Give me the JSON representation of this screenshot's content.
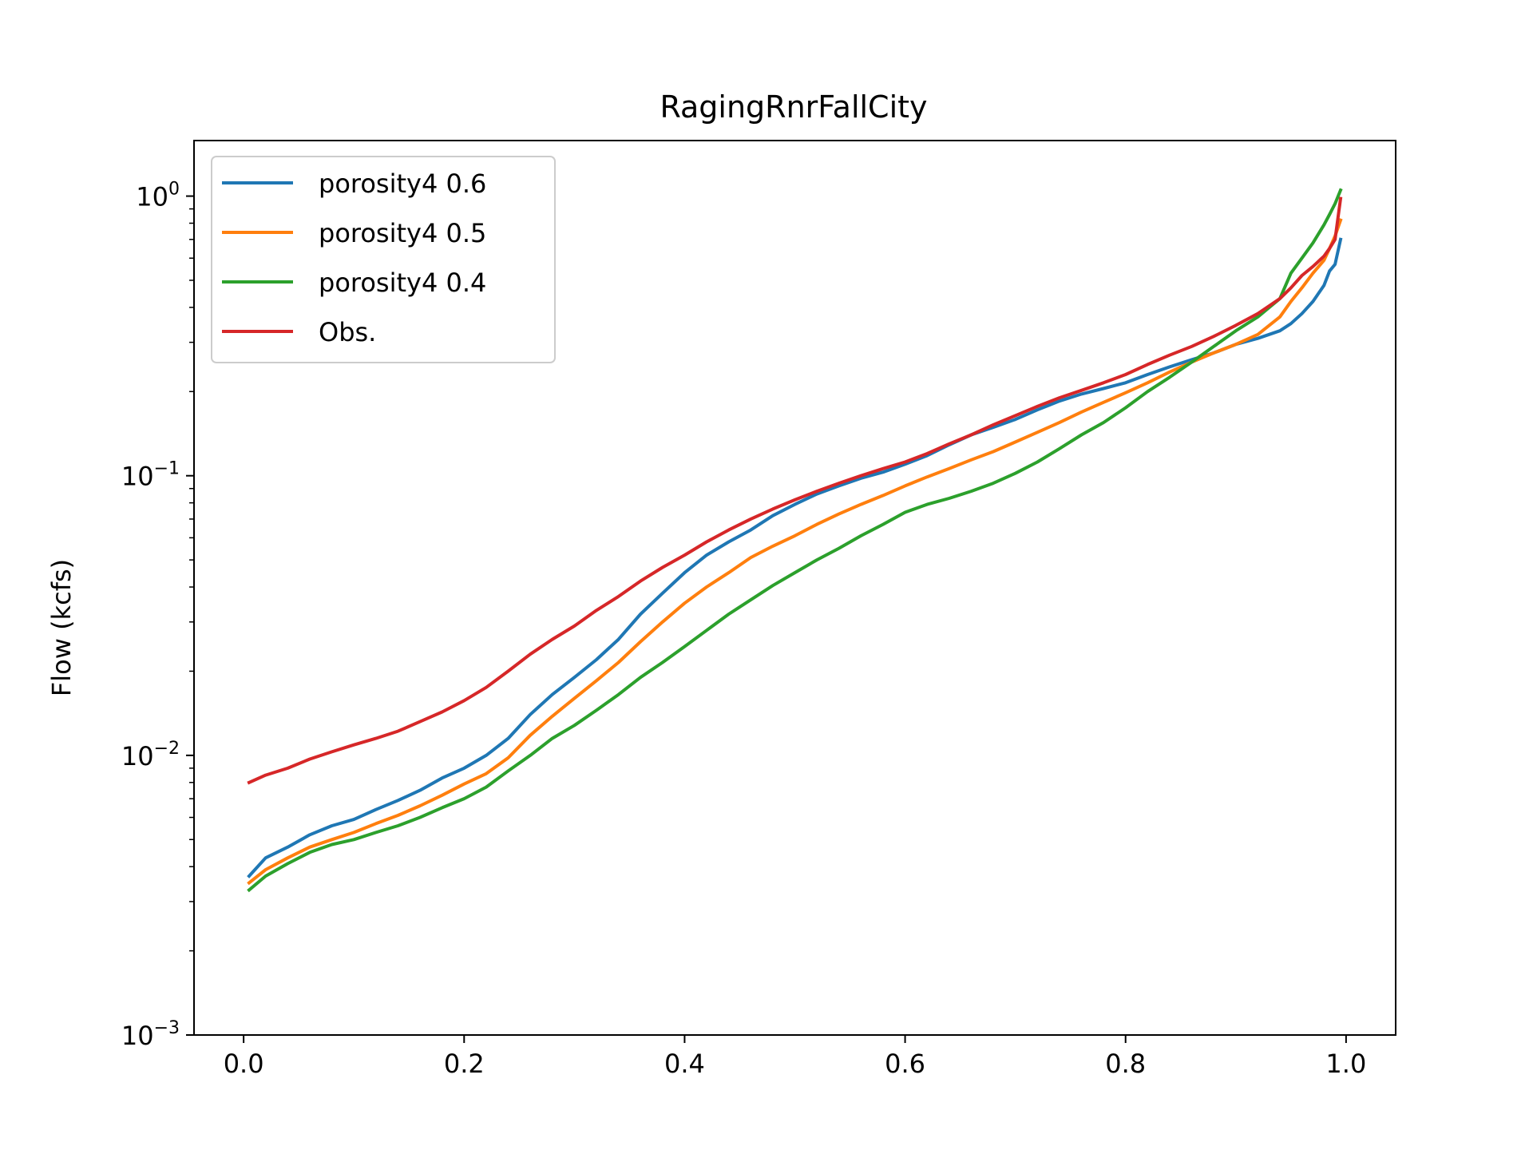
{
  "chart_data": {
    "type": "line",
    "title": "RagingRnrFallCity",
    "xlabel": "",
    "ylabel": "Flow (kcfs)",
    "yscale": "log",
    "xlim": [
      -0.045,
      1.045
    ],
    "ylim": [
      0.001,
      1.58
    ],
    "xticks": [
      0.0,
      0.2,
      0.4,
      0.6,
      0.8,
      1.0
    ],
    "xtick_labels": [
      "0.0",
      "0.2",
      "0.4",
      "0.6",
      "0.8",
      "1.0"
    ],
    "yticks": [
      {
        "value": 0.001,
        "base": "10",
        "exp": "−3"
      },
      {
        "value": 0.01,
        "base": "10",
        "exp": "−2"
      },
      {
        "value": 0.1,
        "base": "10",
        "exp": "−1"
      },
      {
        "value": 1,
        "base": "10",
        "exp": "0"
      }
    ],
    "grid": false,
    "legend_position": "top-left",
    "series": [
      {
        "name": "porosity4 0.6",
        "color": "#1f77b4",
        "x": [
          0.005,
          0.02,
          0.04,
          0.06,
          0.08,
          0.1,
          0.12,
          0.14,
          0.16,
          0.18,
          0.2,
          0.22,
          0.24,
          0.26,
          0.28,
          0.3,
          0.32,
          0.34,
          0.36,
          0.38,
          0.4,
          0.42,
          0.44,
          0.46,
          0.48,
          0.5,
          0.52,
          0.54,
          0.56,
          0.58,
          0.6,
          0.62,
          0.64,
          0.66,
          0.68,
          0.7,
          0.72,
          0.74,
          0.76,
          0.78,
          0.8,
          0.82,
          0.84,
          0.86,
          0.88,
          0.9,
          0.92,
          0.94,
          0.95,
          0.96,
          0.97,
          0.98,
          0.985,
          0.99,
          0.995
        ],
        "y": [
          0.0037,
          0.0043,
          0.0047,
          0.0052,
          0.0056,
          0.0059,
          0.0064,
          0.0069,
          0.0075,
          0.0083,
          0.009,
          0.01,
          0.0115,
          0.014,
          0.0165,
          0.019,
          0.022,
          0.026,
          0.032,
          0.038,
          0.045,
          0.052,
          0.058,
          0.064,
          0.072,
          0.079,
          0.086,
          0.092,
          0.098,
          0.103,
          0.11,
          0.118,
          0.129,
          0.14,
          0.149,
          0.159,
          0.172,
          0.185,
          0.196,
          0.205,
          0.215,
          0.23,
          0.245,
          0.26,
          0.275,
          0.295,
          0.31,
          0.33,
          0.35,
          0.38,
          0.42,
          0.48,
          0.54,
          0.57,
          0.7
        ]
      },
      {
        "name": "porosity4 0.5",
        "color": "#ff7f0e",
        "x": [
          0.005,
          0.02,
          0.04,
          0.06,
          0.08,
          0.1,
          0.12,
          0.14,
          0.16,
          0.18,
          0.2,
          0.22,
          0.24,
          0.26,
          0.28,
          0.3,
          0.32,
          0.34,
          0.36,
          0.38,
          0.4,
          0.42,
          0.44,
          0.46,
          0.48,
          0.5,
          0.52,
          0.54,
          0.56,
          0.58,
          0.6,
          0.62,
          0.64,
          0.66,
          0.68,
          0.7,
          0.72,
          0.74,
          0.76,
          0.78,
          0.8,
          0.82,
          0.84,
          0.86,
          0.88,
          0.9,
          0.92,
          0.94,
          0.95,
          0.96,
          0.97,
          0.98,
          0.985,
          0.99,
          0.995
        ],
        "y": [
          0.0035,
          0.0039,
          0.0043,
          0.0047,
          0.005,
          0.0053,
          0.0057,
          0.0061,
          0.0066,
          0.0072,
          0.0079,
          0.0086,
          0.0098,
          0.0118,
          0.0138,
          0.016,
          0.0185,
          0.0215,
          0.0255,
          0.03,
          0.035,
          0.04,
          0.045,
          0.051,
          0.056,
          0.061,
          0.067,
          0.073,
          0.079,
          0.085,
          0.092,
          0.099,
          0.106,
          0.114,
          0.122,
          0.132,
          0.143,
          0.155,
          0.169,
          0.183,
          0.198,
          0.215,
          0.235,
          0.255,
          0.275,
          0.295,
          0.32,
          0.37,
          0.42,
          0.47,
          0.53,
          0.59,
          0.65,
          0.72,
          0.82
        ]
      },
      {
        "name": "porosity4 0.4",
        "color": "#2ca02c",
        "x": [
          0.005,
          0.02,
          0.04,
          0.06,
          0.08,
          0.1,
          0.12,
          0.14,
          0.16,
          0.18,
          0.2,
          0.22,
          0.24,
          0.26,
          0.28,
          0.3,
          0.32,
          0.34,
          0.36,
          0.38,
          0.4,
          0.42,
          0.44,
          0.46,
          0.48,
          0.5,
          0.52,
          0.54,
          0.56,
          0.58,
          0.6,
          0.62,
          0.64,
          0.66,
          0.68,
          0.7,
          0.72,
          0.74,
          0.76,
          0.78,
          0.8,
          0.82,
          0.84,
          0.86,
          0.88,
          0.9,
          0.92,
          0.94,
          0.95,
          0.96,
          0.97,
          0.98,
          0.985,
          0.99,
          0.995
        ],
        "y": [
          0.0033,
          0.0037,
          0.0041,
          0.0045,
          0.0048,
          0.005,
          0.0053,
          0.0056,
          0.006,
          0.0065,
          0.007,
          0.0077,
          0.0088,
          0.01,
          0.0115,
          0.0128,
          0.0145,
          0.0165,
          0.019,
          0.0215,
          0.0245,
          0.028,
          0.032,
          0.036,
          0.0405,
          0.045,
          0.05,
          0.055,
          0.061,
          0.067,
          0.074,
          0.079,
          0.083,
          0.088,
          0.094,
          0.102,
          0.112,
          0.125,
          0.14,
          0.155,
          0.175,
          0.2,
          0.225,
          0.255,
          0.29,
          0.33,
          0.37,
          0.43,
          0.53,
          0.6,
          0.68,
          0.79,
          0.86,
          0.94,
          1.05
        ]
      },
      {
        "name": "Obs.",
        "color": "#d62728",
        "x": [
          0.005,
          0.02,
          0.04,
          0.06,
          0.08,
          0.1,
          0.12,
          0.14,
          0.16,
          0.18,
          0.2,
          0.22,
          0.24,
          0.26,
          0.28,
          0.3,
          0.32,
          0.34,
          0.36,
          0.38,
          0.4,
          0.42,
          0.44,
          0.46,
          0.48,
          0.5,
          0.52,
          0.54,
          0.56,
          0.58,
          0.6,
          0.62,
          0.64,
          0.66,
          0.68,
          0.7,
          0.72,
          0.74,
          0.76,
          0.78,
          0.8,
          0.82,
          0.84,
          0.86,
          0.88,
          0.9,
          0.92,
          0.94,
          0.95,
          0.96,
          0.97,
          0.98,
          0.985,
          0.99,
          0.995
        ],
        "y": [
          0.008,
          0.0085,
          0.009,
          0.0097,
          0.0103,
          0.0109,
          0.0115,
          0.0122,
          0.0132,
          0.0143,
          0.0157,
          0.0175,
          0.02,
          0.023,
          0.026,
          0.029,
          0.033,
          0.037,
          0.042,
          0.047,
          0.052,
          0.058,
          0.064,
          0.07,
          0.076,
          0.082,
          0.088,
          0.094,
          0.1,
          0.106,
          0.112,
          0.12,
          0.13,
          0.14,
          0.152,
          0.164,
          0.177,
          0.19,
          0.202,
          0.215,
          0.23,
          0.25,
          0.27,
          0.29,
          0.315,
          0.345,
          0.38,
          0.43,
          0.47,
          0.52,
          0.56,
          0.61,
          0.65,
          0.7,
          0.98
        ]
      }
    ]
  }
}
